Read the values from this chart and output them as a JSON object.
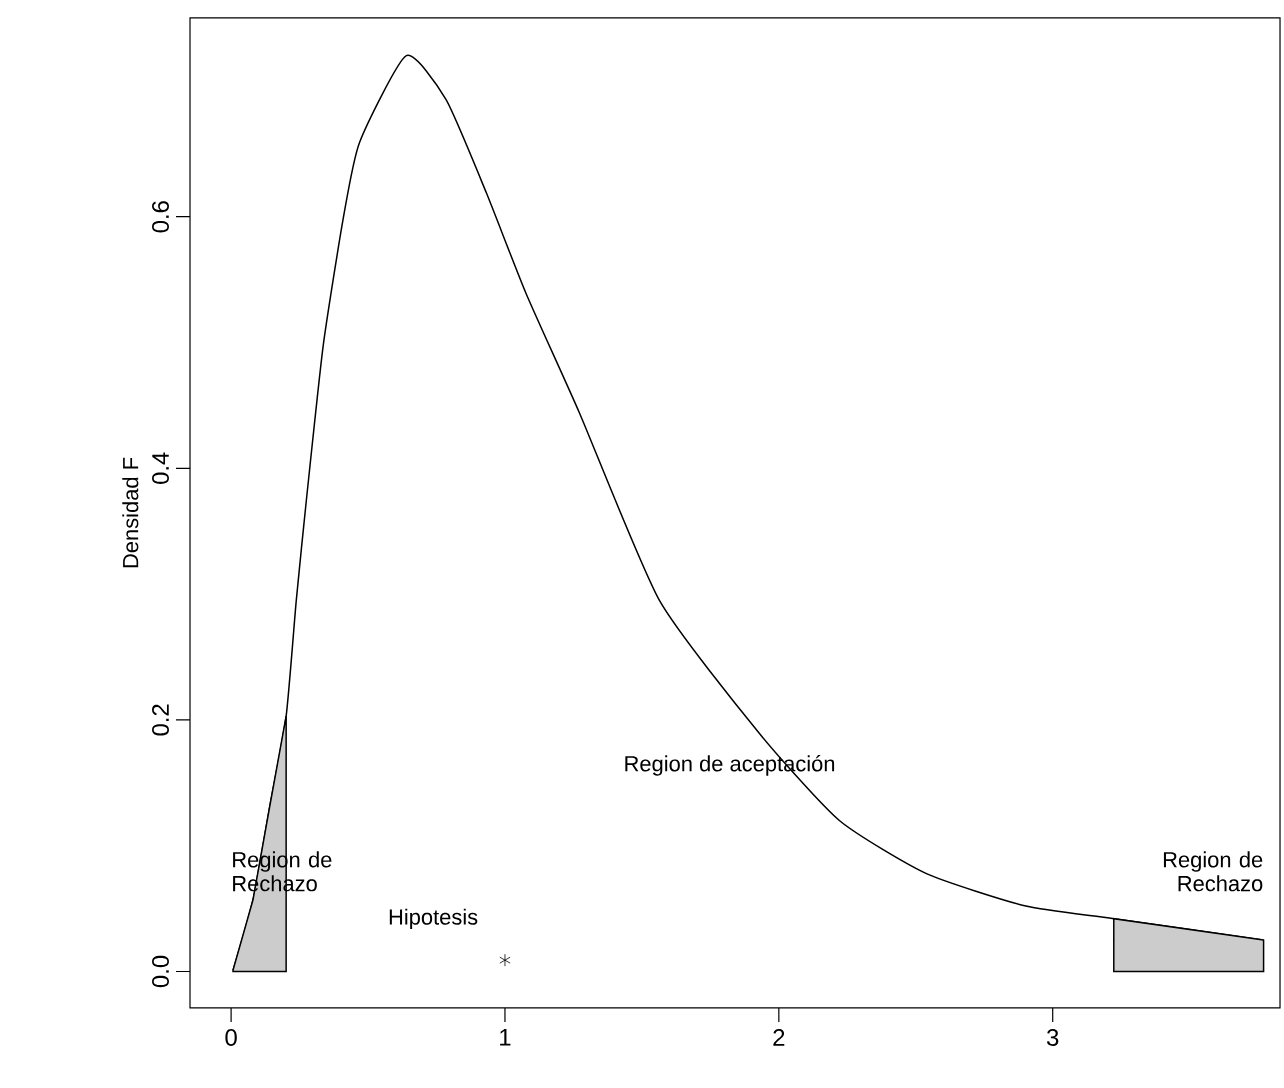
{
  "chart_data": {
    "type": "line",
    "ylabel": "Densidad F",
    "xlim": [
      -0.15,
      3.83
    ],
    "ylim": [
      -0.029,
      0.758
    ],
    "xticks": [
      0,
      1,
      2,
      3
    ],
    "yticks": [
      {
        "value": 0,
        "label": "0.0"
      },
      {
        "value": 0.2,
        "label": "0.2"
      },
      {
        "value": 0.4,
        "label": "0.4"
      },
      {
        "value": 0.6,
        "label": "0.6"
      }
    ],
    "grid": false,
    "series": [
      {
        "color": "#000000",
        "x": [
          0.007,
          0.08,
          0.141,
          0.201,
          0.238,
          0.275,
          0.336,
          0.409,
          0.469,
          0.64,
          0.785,
          0.932,
          1.077,
          1.272,
          1.564,
          1.93,
          2.221,
          2.537,
          2.902,
          3.223,
          3.77
        ],
        "values": [
          0.001,
          0.057,
          0.131,
          0.203,
          0.295,
          0.375,
          0.497,
          0.598,
          0.659,
          0.728,
          0.693,
          0.619,
          0.539,
          0.444,
          0.295,
          0.189,
          0.12,
          0.078,
          0.052,
          0.042,
          0.025
        ]
      },
      {
        "type": "area",
        "color": "#cccccc",
        "x": [
          0.007,
          0.08,
          0.141,
          0.201
        ],
        "values": [
          0.001,
          0.057,
          0.131,
          0.203
        ]
      },
      {
        "type": "area",
        "color": "#cccccc",
        "x": [
          3.223,
          3.77
        ],
        "values": [
          0.042,
          0.025
        ]
      },
      {
        "type": "scatter",
        "color": "#000000",
        "marker": "cross",
        "x": [
          1
        ],
        "values": [
          0.009
        ]
      }
    ],
    "annotations": [
      "Region de Rechazo",
      "Hipotesis",
      "Region de aceptación",
      "Region de Rechazo"
    ]
  }
}
